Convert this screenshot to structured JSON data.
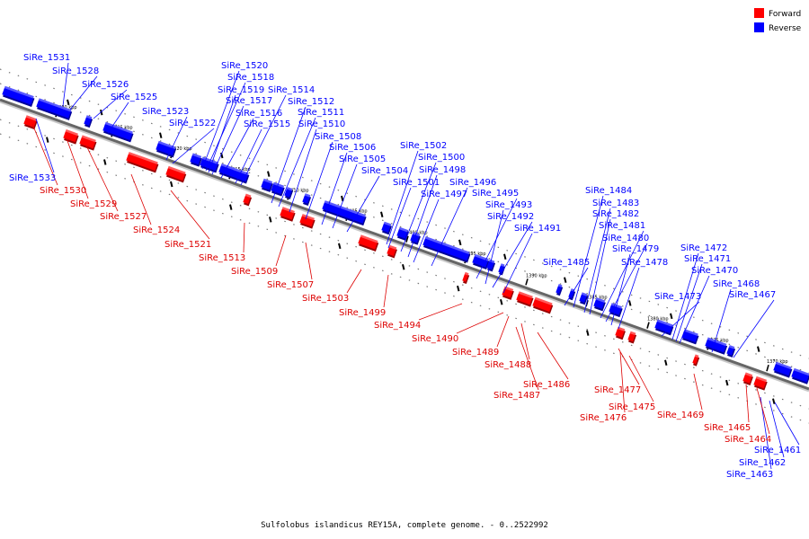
{
  "caption": "Sulfolobus islandicus REY15A, complete genome. - 0..2522992",
  "legend": [
    {
      "label": "Forward",
      "color": "#ff0000"
    },
    {
      "label": "Reverse",
      "color": "#0000ff"
    }
  ],
  "scale_labels": [
    "1430 kbp",
    "1425 kbp",
    "1420 kbp",
    "1415 kbp",
    "1410 kbp",
    "1405 kbp",
    "1400 kbp",
    "1395 kbp",
    "1390 kbp",
    "1385 kbp",
    "1380 kbp",
    "1375 kbp",
    "1370 kbp"
  ],
  "reverse_labels": [
    "SiRe_1531",
    "SiRe_1528",
    "SiRe_1526",
    "SiRe_1525",
    "SiRe_1523",
    "SiRe_1522",
    "SiRe_1533",
    "SiRe_1520",
    "SiRe_1518",
    "SiRe_1519",
    "SiRe_1517",
    "SiRe_1516",
    "SiRe_1515",
    "SiRe_1514",
    "SiRe_1512",
    "SiRe_1511",
    "SiRe_1510",
    "SiRe_1508",
    "SiRe_1506",
    "SiRe_1505",
    "SiRe_1504",
    "SiRe_1502",
    "SiRe_1500",
    "SiRe_1498",
    "SiRe_1501",
    "SiRe_1497",
    "SiRe_1496",
    "SiRe_1495",
    "SiRe_1493",
    "SiRe_1492",
    "SiRe_1491",
    "SiRe_1485",
    "SiRe_1484",
    "SiRe_1483",
    "SiRe_1482",
    "SiRe_1481",
    "SiRe_1480",
    "SiRe_1479",
    "SiRe_1478",
    "SiRe_1473",
    "SiRe_1472",
    "SiRe_1471",
    "SiRe_1470",
    "SiRe_1468",
    "SiRe_1467",
    "SiRe_1461",
    "SiRe_1462",
    "SiRe_1463"
  ],
  "forward_labels": [
    "SiRe_1530",
    "SiRe_1529",
    "SiRe_1527",
    "SiRe_1524",
    "SiRe_1521",
    "SiRe_1513",
    "SiRe_1509",
    "SiRe_1507",
    "SiRe_1503",
    "SiRe_1499",
    "SiRe_1494",
    "SiRe_1490",
    "SiRe_1489",
    "SiRe_1488",
    "SiRe_1487",
    "SiRe_1486",
    "SiRe_1477",
    "SiRe_1476",
    "SiRe_1475",
    "SiRe_1469",
    "SiRe_1465",
    "SiRe_1464"
  ]
}
